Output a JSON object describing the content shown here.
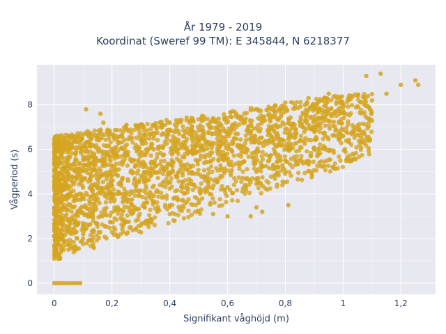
{
  "chart_data": {
    "type": "scatter",
    "title": "År 1979 - 2019",
    "subtitle": "Koordinat (Sweref 99 TM): E 345844, N 6218377",
    "xlabel": "Signifikant våghöjd (m)",
    "ylabel": "Vågperiod (s)",
    "xlim": [
      -0.06,
      1.32
    ],
    "ylim": [
      -0.5,
      9.8
    ],
    "x_ticks": [
      0,
      0.2,
      0.4,
      0.6,
      0.8,
      1,
      1.2
    ],
    "x_tick_labels": [
      "0",
      "0,2",
      "0,4",
      "0,6",
      "0,8",
      "1",
      "1,2"
    ],
    "y_ticks": [
      0,
      2,
      4,
      6,
      8
    ],
    "y_tick_labels": [
      "0",
      "2",
      "4",
      "6",
      "8"
    ],
    "grid": true,
    "marker_color": "#d4a520",
    "background_color": "#e8e8f0",
    "points": [
      [
        0.0,
        0.0
      ],
      [
        0.01,
        0.0
      ],
      [
        0.02,
        0.0
      ],
      [
        0.03,
        0.0
      ],
      [
        0.04,
        0.0
      ],
      [
        0.05,
        0.0
      ],
      [
        0.06,
        0.0
      ],
      [
        0.07,
        0.0
      ],
      [
        0.08,
        0.0
      ],
      [
        0.09,
        0.0
      ],
      [
        0.0,
        1.7
      ],
      [
        0.0,
        3.2
      ],
      [
        0.0,
        5.0
      ],
      [
        0.005,
        2.3
      ],
      [
        0.01,
        4.1
      ],
      [
        0.02,
        1.1
      ],
      [
        0.03,
        6.0
      ],
      [
        0.05,
        6.6
      ],
      [
        0.07,
        6.4
      ],
      [
        0.11,
        7.8
      ],
      [
        0.16,
        7.6
      ],
      [
        0.17,
        7.2
      ],
      [
        1.08,
        9.3
      ],
      [
        1.13,
        9.4
      ],
      [
        1.25,
        9.1
      ],
      [
        1.26,
        8.9
      ],
      [
        1.2,
        8.9
      ],
      [
        1.15,
        8.5
      ],
      [
        0.81,
        3.5
      ],
      [
        0.72,
        3.2
      ],
      [
        0.7,
        3.4
      ],
      [
        0.68,
        3.0
      ],
      [
        0.6,
        3.0
      ],
      [
        0.55,
        3.1
      ],
      [
        0.25,
        7.1
      ],
      [
        0.31,
        7.0
      ],
      [
        0.4,
        7.2
      ],
      [
        0.48,
        7.3
      ],
      [
        0.55,
        7.4
      ],
      [
        0.63,
        7.6
      ],
      [
        0.7,
        7.8
      ],
      [
        0.8,
        8.1
      ],
      [
        0.88,
        8.3
      ],
      [
        0.95,
        8.5
      ],
      [
        1.05,
        8.4
      ],
      [
        1.1,
        8.2
      ],
      [
        0.1,
        2.2
      ],
      [
        0.2,
        2.3
      ],
      [
        0.3,
        2.6
      ],
      [
        0.4,
        3.1
      ],
      [
        0.5,
        3.6
      ],
      [
        0.6,
        4.3
      ],
      [
        0.7,
        5.0
      ],
      [
        0.8,
        5.5
      ],
      [
        0.9,
        6.0
      ],
      [
        1.0,
        6.6
      ],
      [
        1.1,
        7.3
      ]
    ]
  }
}
